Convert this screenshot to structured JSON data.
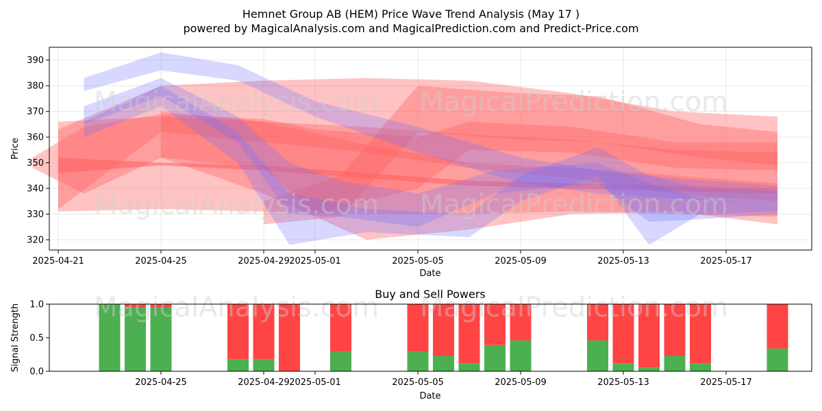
{
  "title_line1": "Hemnet Group AB (HEM) Price Wave Trend Analysis (May 17 )",
  "title_line2": "powered by MagicalAnalysis.com and MagicalPrediction.com and Predict-Price.com",
  "watermarks": [
    "MagicalAnalysis.com",
    "MagicalPrediction.com"
  ],
  "colors": {
    "buy": "#4caf50",
    "sell": "#ff4444",
    "red_band": "#ff6060",
    "blue_band": "#7070ff"
  },
  "chart_data": [
    {
      "type": "area",
      "title": "",
      "xlabel": "Date",
      "ylabel": "Price",
      "ylim": [
        316,
        395
      ],
      "xlim": [
        "2025-04-20",
        "2025-05-20"
      ],
      "x_ticks": [
        "2025-04-21",
        "2025-04-25",
        "2025-04-29",
        "2025-05-01",
        "2025-05-05",
        "2025-05-09",
        "2025-05-13",
        "2025-05-17"
      ],
      "y_ticks": [
        320,
        330,
        340,
        350,
        360,
        370,
        380,
        390
      ],
      "grid": true,
      "series": [
        {
          "color": "red",
          "x": [
            "2025-04-21",
            "2025-04-25",
            "2025-04-29",
            "2025-05-03",
            "2025-05-07",
            "2025-05-11",
            "2025-05-15",
            "2025-05-19"
          ],
          "upper": [
            366,
            368,
            366,
            364,
            361,
            359,
            355,
            354
          ],
          "lower": [
            331,
            332,
            331,
            330,
            330,
            331,
            330,
            329
          ]
        },
        {
          "color": "red",
          "x": [
            "2025-04-21",
            "2025-04-25",
            "2025-04-29",
            "2025-05-03",
            "2025-05-07",
            "2025-05-11",
            "2025-05-15",
            "2025-05-19"
          ],
          "upper": [
            363,
            380,
            382,
            383,
            382,
            377,
            370,
            368
          ],
          "lower": [
            332,
            362,
            358,
            354,
            348,
            344,
            338,
            335
          ]
        },
        {
          "color": "red",
          "x": [
            "2025-04-21",
            "2025-04-25",
            "2025-04-29",
            "2025-05-03",
            "2025-05-07",
            "2025-05-11",
            "2025-05-15",
            "2025-05-19"
          ],
          "upper": [
            352,
            350,
            349,
            346,
            343,
            342,
            341,
            340
          ],
          "lower": [
            346,
            349,
            347,
            344,
            341,
            340,
            339,
            338
          ]
        },
        {
          "color": "red",
          "x": [
            "2025-04-20",
            "2025-04-22",
            "2025-04-25",
            "2025-04-29",
            "2025-05-01",
            "2025-05-05",
            "2025-05-07",
            "2025-05-11",
            "2025-05-15",
            "2025-05-19"
          ],
          "upper": [
            352,
            364,
            369,
            367,
            363,
            360,
            366,
            364,
            358,
            358
          ],
          "lower": [
            348,
            338,
            352,
            348,
            330,
            340,
            355,
            354,
            348,
            347
          ]
        },
        {
          "color": "red",
          "x": [
            "2025-04-29",
            "2025-05-02",
            "2025-05-05",
            "2025-05-09",
            "2025-05-12",
            "2025-05-16",
            "2025-05-19"
          ],
          "upper": [
            335,
            345,
            380,
            377,
            376,
            365,
            362
          ],
          "lower": [
            326,
            329,
            362,
            359,
            358,
            352,
            349
          ]
        },
        {
          "color": "red",
          "x": [
            "2025-04-25",
            "2025-04-29",
            "2025-05-03",
            "2025-05-07",
            "2025-05-11",
            "2025-05-15",
            "2025-05-19"
          ],
          "upper": [
            370,
            366,
            357,
            350,
            348,
            345,
            342
          ],
          "lower": [
            352,
            338,
            320,
            324,
            330,
            331,
            326
          ]
        },
        {
          "color": "blue",
          "x": [
            "2025-04-22",
            "2025-04-25",
            "2025-04-28",
            "2025-05-01",
            "2025-05-05",
            "2025-05-09",
            "2025-05-12",
            "2025-05-15",
            "2025-05-19"
          ],
          "upper": [
            383,
            393,
            388,
            374,
            364,
            352,
            347,
            344,
            341
          ],
          "lower": [
            378,
            386,
            382,
            368,
            354,
            342,
            338,
            336,
            334
          ]
        },
        {
          "color": "blue",
          "x": [
            "2025-04-22",
            "2025-04-25",
            "2025-04-28",
            "2025-04-30",
            "2025-05-02",
            "2025-05-05",
            "2025-05-08",
            "2025-05-12",
            "2025-05-14",
            "2025-05-16",
            "2025-05-19"
          ],
          "upper": [
            372,
            383,
            368,
            350,
            343,
            338,
            347,
            350,
            342,
            336,
            334
          ],
          "lower": [
            365,
            376,
            358,
            330,
            329,
            325,
            338,
            342,
            327,
            328,
            330
          ]
        },
        {
          "color": "blue",
          "x": [
            "2025-04-22",
            "2025-04-25",
            "2025-04-28",
            "2025-04-30",
            "2025-05-03",
            "2025-05-07",
            "2025-05-09",
            "2025-05-12",
            "2025-05-14",
            "2025-05-16",
            "2025-05-19"
          ],
          "upper": [
            366,
            380,
            362,
            338,
            332,
            330,
            345,
            356,
            345,
            340,
            339
          ],
          "lower": [
            360,
            372,
            350,
            318,
            323,
            321,
            335,
            345,
            318,
            330,
            331
          ]
        }
      ]
    },
    {
      "type": "bar",
      "title": "Buy and Sell Powers",
      "xlabel": "Date",
      "ylabel": "Signal Strength",
      "ylim": [
        0,
        1.0
      ],
      "y_ticks": [
        0.0,
        0.5,
        1.0
      ],
      "y_tick_labels": [
        "0.0",
        "0.5",
        "1.0"
      ],
      "x_ticks": [
        "2025-04-25",
        "2025-04-29",
        "2025-05-01",
        "2025-05-05",
        "2025-05-09",
        "2025-05-13",
        "2025-05-17"
      ],
      "categories": [
        "2025-04-23",
        "2025-04-24",
        "2025-04-25",
        "2025-04-28",
        "2025-04-29",
        "2025-04-30",
        "2025-05-02",
        "2025-05-05",
        "2025-05-06",
        "2025-05-07",
        "2025-05-08",
        "2025-05-09",
        "2025-05-12",
        "2025-05-13",
        "2025-05-14",
        "2025-05-15",
        "2025-05-16",
        "2025-05-19"
      ],
      "series": [
        {
          "name": "buy",
          "values": [
            1.0,
            0.95,
            0.95,
            0.18,
            0.18,
            0.0,
            0.29,
            0.29,
            0.23,
            0.12,
            0.39,
            0.46,
            0.46,
            0.12,
            0.06,
            0.23,
            0.12,
            0.34
          ]
        },
        {
          "name": "sell",
          "values": [
            0.0,
            0.05,
            0.05,
            0.82,
            0.82,
            1.0,
            0.71,
            0.71,
            0.77,
            0.88,
            0.61,
            0.54,
            0.54,
            0.88,
            0.94,
            0.77,
            0.88,
            0.66
          ]
        }
      ]
    }
  ]
}
